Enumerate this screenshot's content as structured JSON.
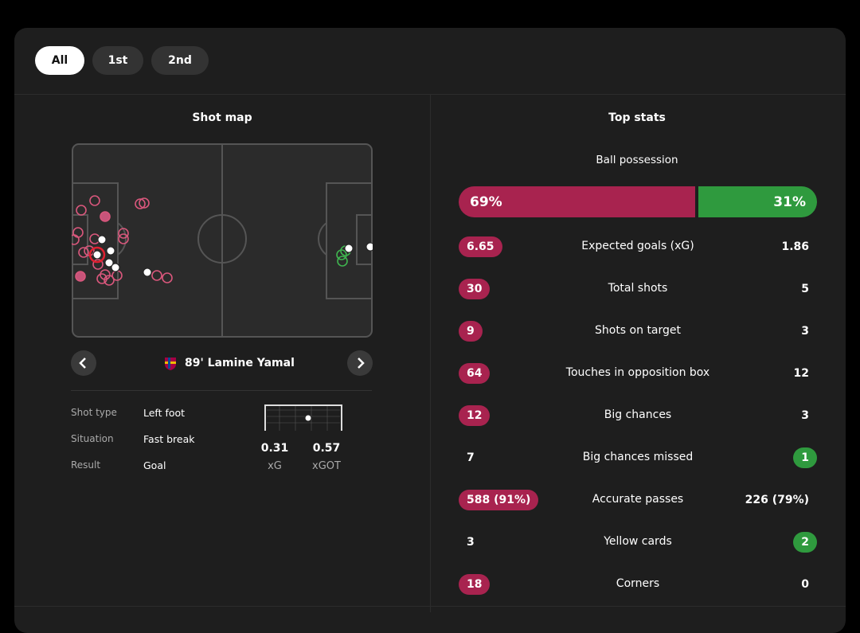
{
  "tabs": [
    "All",
    "1st",
    "2nd"
  ],
  "active_tab": 0,
  "colors": {
    "home": "#a8234f",
    "away": "#2f9a3e"
  },
  "shot_map": {
    "title": "Shot map",
    "shot": {
      "player": "89' Lamine Yamal",
      "details": [
        {
          "label": "Shot type",
          "value": "Left foot"
        },
        {
          "label": "Situation",
          "value": "Fast break"
        },
        {
          "label": "Result",
          "value": "Goal"
        }
      ],
      "xg": "0.31",
      "xg_label": "xG",
      "xgot": "0.57",
      "xgot_label": "xGOT"
    }
  },
  "top_stats": {
    "title": "Top stats",
    "possession": {
      "label": "Ball possession",
      "home": "69%",
      "away": "31%"
    },
    "rows": [
      {
        "label": "Expected goals (xG)",
        "home": "6.65",
        "away": "1.86",
        "highlight": "home"
      },
      {
        "label": "Total shots",
        "home": "30",
        "away": "5",
        "highlight": "home"
      },
      {
        "label": "Shots on target",
        "home": "9",
        "away": "3",
        "highlight": "home"
      },
      {
        "label": "Touches in opposition box",
        "home": "64",
        "away": "12",
        "highlight": "home"
      },
      {
        "label": "Big chances",
        "home": "12",
        "away": "3",
        "highlight": "home"
      },
      {
        "label": "Big chances missed",
        "home": "7",
        "away": "1",
        "highlight": "away"
      },
      {
        "label": "Accurate passes",
        "home": "588 (91%)",
        "away": "226 (79%)",
        "highlight": "home"
      },
      {
        "label": "Yellow cards",
        "home": "3",
        "away": "2",
        "highlight": "away"
      },
      {
        "label": "Corners",
        "home": "18",
        "away": "0",
        "highlight": "home"
      }
    ]
  }
}
